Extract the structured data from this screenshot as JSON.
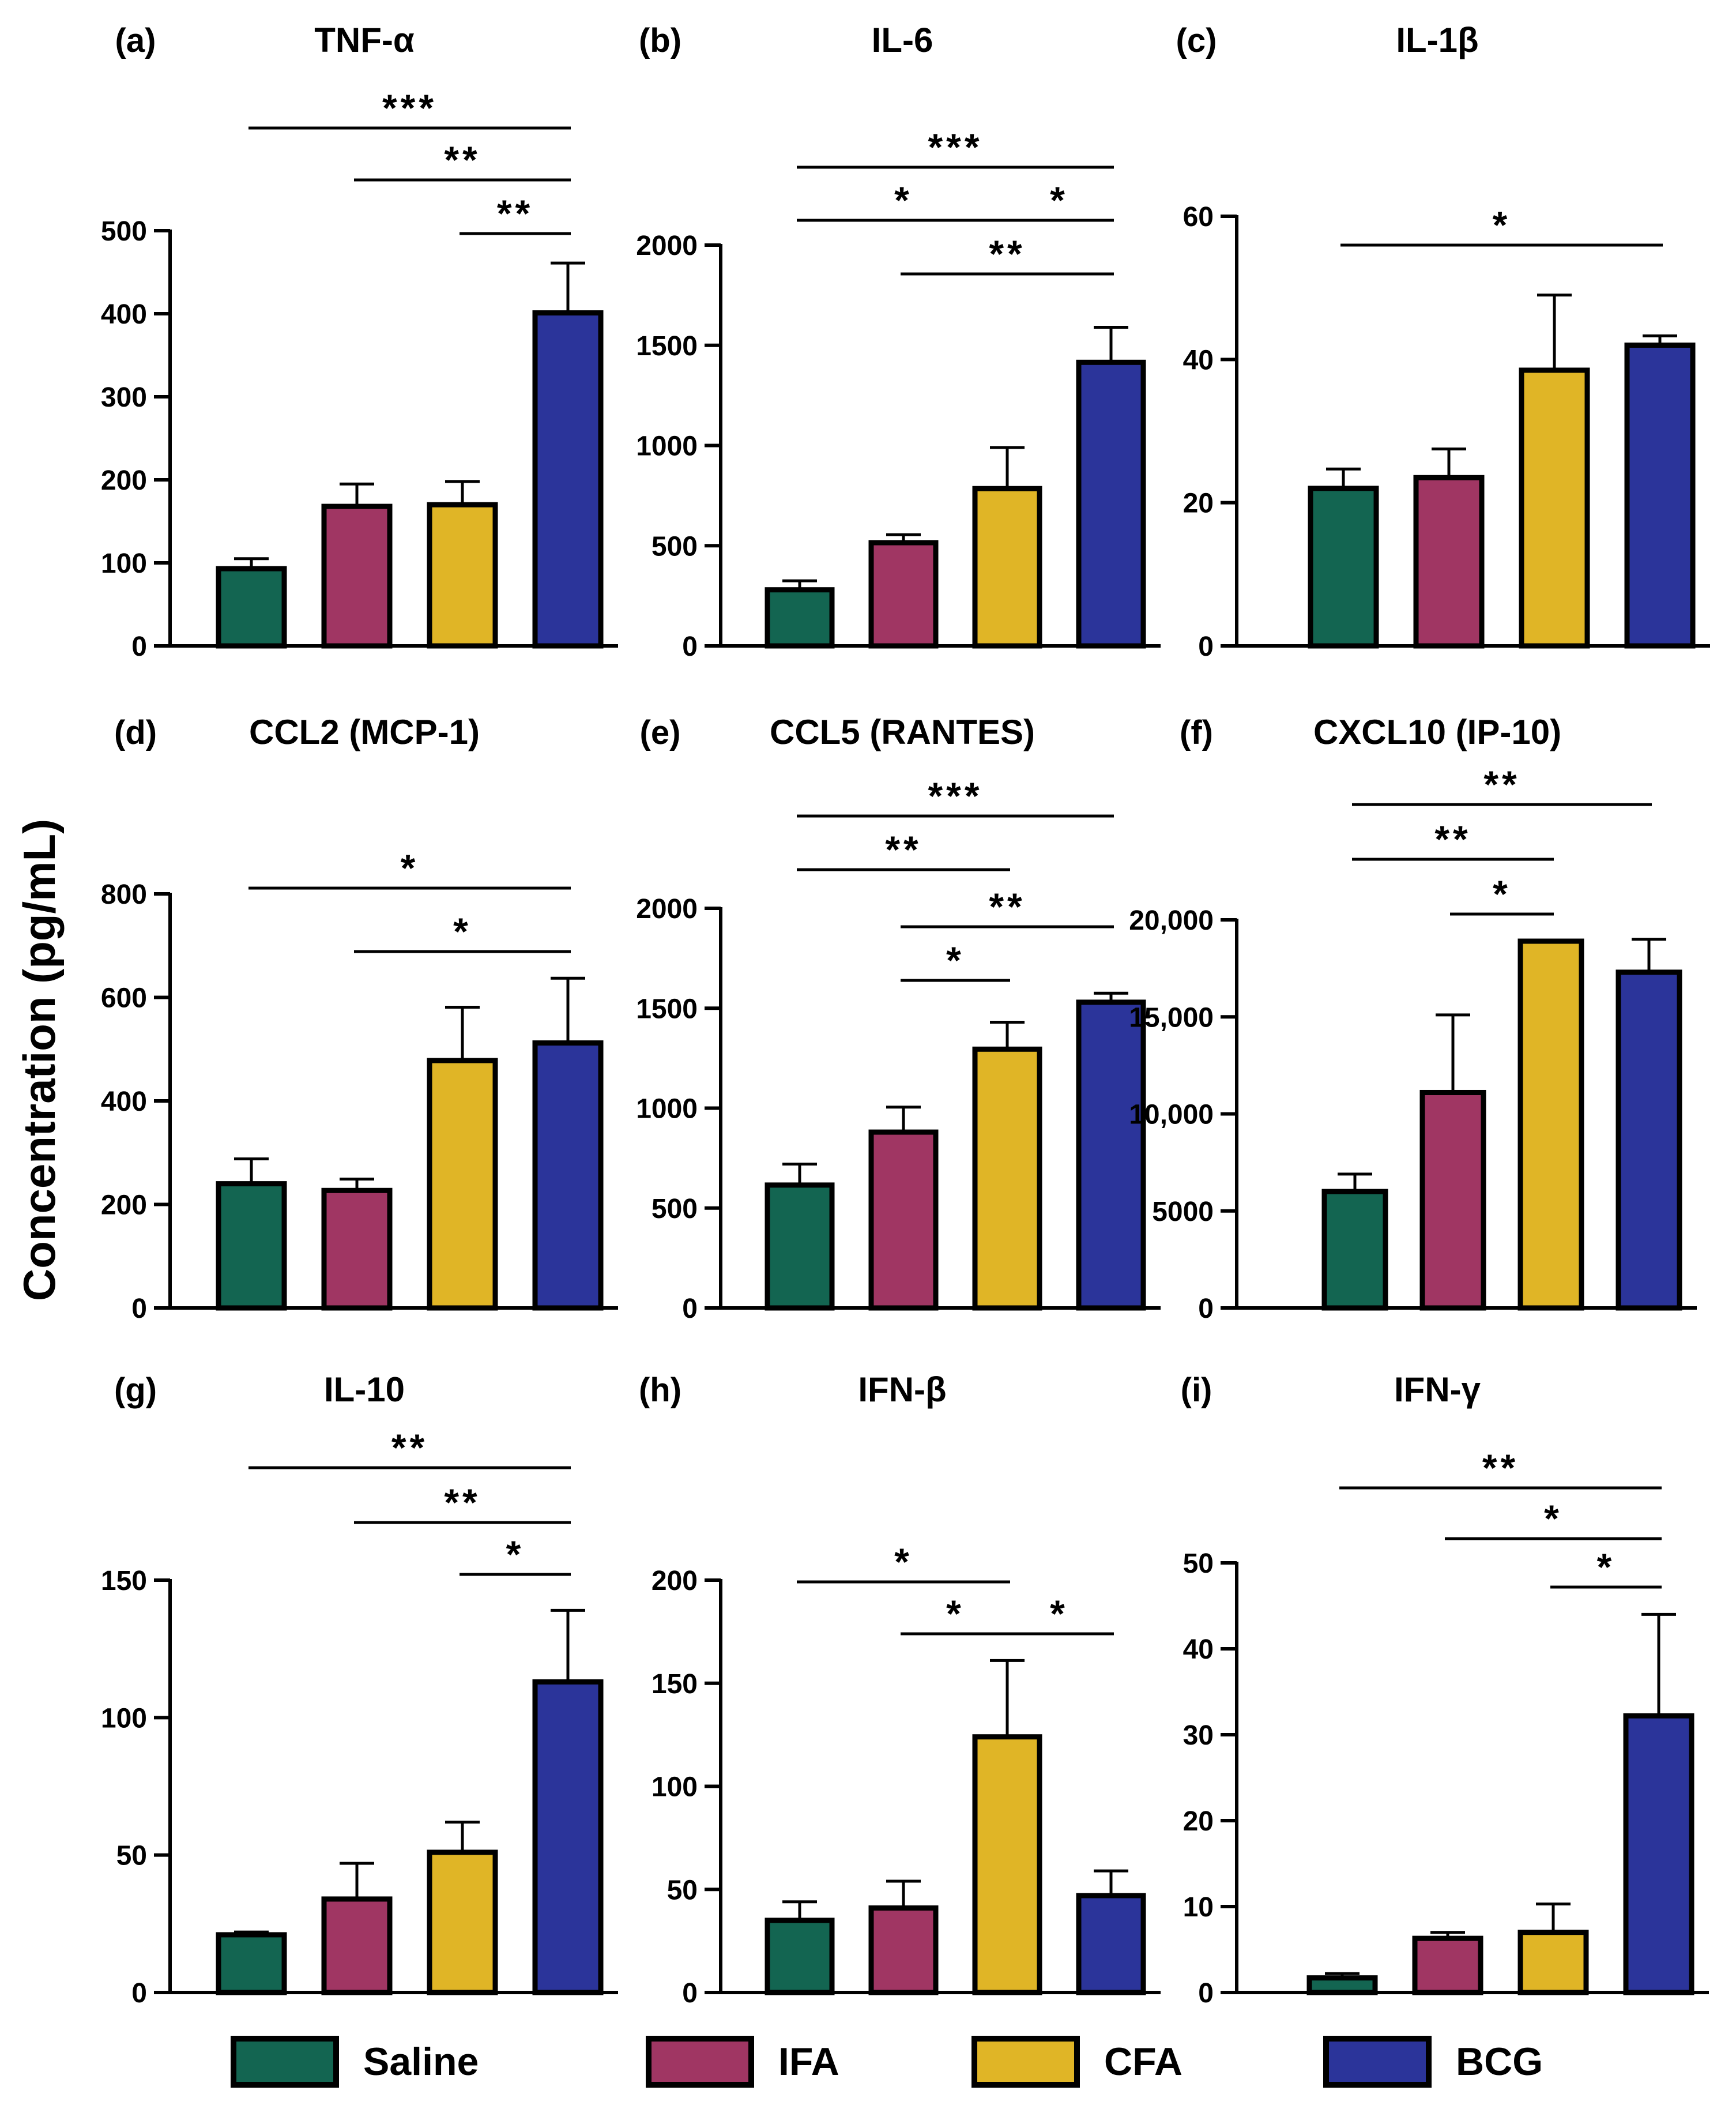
{
  "y_axis_label": "Concentration (pg/mL)",
  "legend": [
    {
      "name": "Saline",
      "color": "#136551"
    },
    {
      "name": "IFA",
      "color": "#A03663"
    },
    {
      "name": "CFA",
      "color": "#E0B526"
    },
    {
      "name": "BCG",
      "color": "#2B349A"
    }
  ],
  "chart_data": [
    {
      "type": "bar",
      "label": "(a)",
      "title": "TNF-α",
      "ylim": [
        0,
        500
      ],
      "yticks": [
        "0",
        "100",
        "200",
        "300",
        "400",
        "500"
      ],
      "categories": [
        "Saline",
        "IFA",
        "CFA",
        "BCG"
      ],
      "values": [
        93,
        168,
        170,
        401
      ],
      "errors": [
        12,
        27,
        28,
        60
      ],
      "significance": [
        {
          "from": 0,
          "to": 3,
          "label": "***"
        },
        {
          "from": 1,
          "to": 3,
          "label": "**"
        },
        {
          "from": 2,
          "to": 3,
          "label": "**"
        }
      ]
    },
    {
      "type": "bar",
      "label": "(b)",
      "title": "IL-6",
      "ylim": [
        0,
        2000
      ],
      "yticks": [
        "0",
        "500",
        "1000",
        "1500",
        "2000"
      ],
      "categories": [
        "Saline",
        "IFA",
        "CFA",
        "BCG"
      ],
      "values": [
        280,
        515,
        785,
        1415
      ],
      "errors": [
        45,
        40,
        205,
        175
      ],
      "significance": [
        {
          "from": 0,
          "to": 3,
          "label": "***"
        },
        {
          "from": 0,
          "to": 2,
          "label": "*"
        },
        {
          "from": 2,
          "to": 3,
          "label": "*"
        },
        {
          "from": 1,
          "to": 3,
          "label": "**"
        }
      ]
    },
    {
      "type": "bar",
      "label": "(c)",
      "title": "IL-1β",
      "ylim": [
        0,
        60
      ],
      "yticks": [
        "0",
        "20",
        "40",
        "60"
      ],
      "categories": [
        "Saline",
        "IFA",
        "CFA",
        "BCG"
      ],
      "values": [
        22,
        23.5,
        38.5,
        42
      ],
      "errors": [
        2.7,
        4,
        10.5,
        1.3
      ],
      "significance": [
        {
          "from": 0,
          "to": 3,
          "label": "*"
        }
      ]
    },
    {
      "type": "bar",
      "label": "(d)",
      "title": "CCL2 (MCP-1)",
      "ylim": [
        0,
        800
      ],
      "yticks": [
        "0",
        "200",
        "400",
        "600",
        "800"
      ],
      "categories": [
        "Saline",
        "IFA",
        "CFA",
        "BCG"
      ],
      "values": [
        240,
        227,
        478,
        512
      ],
      "errors": [
        48,
        22,
        103,
        125
      ],
      "significance": [
        {
          "from": 0,
          "to": 3,
          "label": "*"
        },
        {
          "from": 1,
          "to": 3,
          "label": "*"
        }
      ]
    },
    {
      "type": "bar",
      "label": "(e)",
      "title": "CCL5 (RANTES)",
      "ylim": [
        0,
        2000
      ],
      "yticks": [
        "0",
        "500",
        "1000",
        "1500",
        "2000"
      ],
      "categories": [
        "Saline",
        "IFA",
        "CFA",
        "BCG"
      ],
      "values": [
        615,
        880,
        1295,
        1530
      ],
      "errors": [
        105,
        125,
        135,
        45
      ],
      "significance": [
        {
          "from": 0,
          "to": 3,
          "label": "***"
        },
        {
          "from": 0,
          "to": 2,
          "label": "**"
        },
        {
          "from": 1,
          "to": 3,
          "label": "**"
        },
        {
          "from": 1,
          "to": 2,
          "label": "*"
        }
      ]
    },
    {
      "type": "bar",
      "label": "(f)",
      "title": "CXCL10 (IP-10)",
      "ylim": [
        0,
        20000
      ],
      "yticks": [
        "0",
        "5000",
        "10,000",
        "15,000",
        "20,000"
      ],
      "categories": [
        "Saline",
        "IFA",
        "CFA",
        "BCG"
      ],
      "values": [
        6000,
        11100,
        18900,
        17300
      ],
      "errors": [
        900,
        4000,
        0,
        1700
      ],
      "significance": [
        {
          "from": 0,
          "to": 3,
          "label": "**"
        },
        {
          "from": 0,
          "to": 2,
          "label": "**"
        },
        {
          "from": 1,
          "to": 2,
          "label": "*"
        }
      ]
    },
    {
      "type": "bar",
      "label": "(g)",
      "title": "IL-10",
      "ylim": [
        0,
        150
      ],
      "yticks": [
        "0",
        "50",
        "100",
        "150"
      ],
      "categories": [
        "Saline",
        "IFA",
        "CFA",
        "BCG"
      ],
      "values": [
        21,
        34,
        51,
        113
      ],
      "errors": [
        1,
        13,
        11,
        26
      ],
      "significance": [
        {
          "from": 0,
          "to": 3,
          "label": "**"
        },
        {
          "from": 1,
          "to": 3,
          "label": "**"
        },
        {
          "from": 2,
          "to": 3,
          "label": "*"
        }
      ]
    },
    {
      "type": "bar",
      "label": "(h)",
      "title": "IFN-β",
      "ylim": [
        0,
        200
      ],
      "yticks": [
        "0",
        "50",
        "100",
        "150",
        "200"
      ],
      "categories": [
        "Saline",
        "IFA",
        "CFA",
        "BCG"
      ],
      "values": [
        35,
        41,
        124,
        47
      ],
      "errors": [
        9,
        13,
        37,
        12
      ],
      "significance": [
        {
          "from": 0,
          "to": 2,
          "label": "*"
        },
        {
          "from": 1,
          "to": 2,
          "label": "*"
        },
        {
          "from": 2,
          "to": 3,
          "label": "*"
        }
      ]
    },
    {
      "type": "bar",
      "label": "(i)",
      "title": "IFN-γ",
      "ylim": [
        0,
        50
      ],
      "yticks": [
        "0",
        "10",
        "20",
        "30",
        "40",
        "50"
      ],
      "categories": [
        "Saline",
        "IFA",
        "CFA",
        "BCG"
      ],
      "values": [
        1.7,
        6.3,
        7,
        32.2
      ],
      "errors": [
        0.5,
        0.7,
        3.3,
        11.8
      ],
      "significance": [
        {
          "from": 0,
          "to": 3,
          "label": "**"
        },
        {
          "from": 1,
          "to": 3,
          "label": "*"
        },
        {
          "from": 2,
          "to": 3,
          "label": "*"
        }
      ]
    }
  ]
}
